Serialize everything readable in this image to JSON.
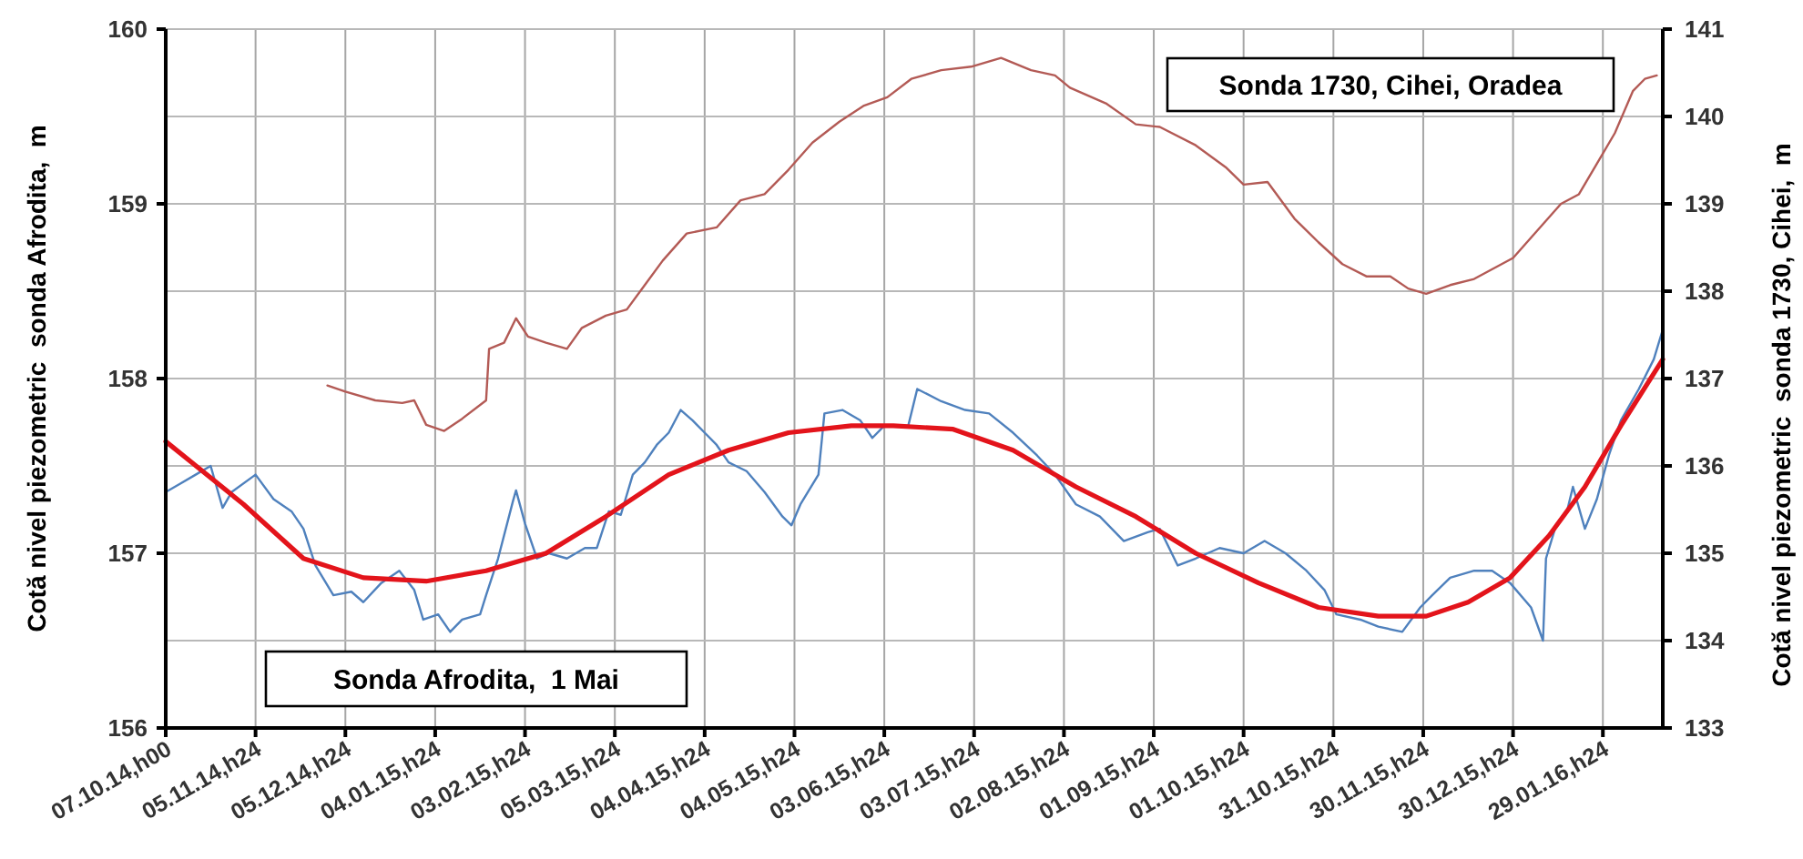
{
  "chart_data": {
    "type": "line",
    "ylabel": "Cotă nivel piezometric  sonda Afrodita,  m",
    "y2label": "Cotă nivel piezometric  sonda 1730, Cihei,  m",
    "xlim": [
      "2014-10-07",
      "2016-02-19"
    ],
    "xticks": [
      {
        "value": "2014-10-07",
        "label": "07.10.14,h00"
      },
      {
        "value": "2014-11-06",
        "label": "05.11.14,h24"
      },
      {
        "value": "2014-12-06",
        "label": "05.12.14,h24"
      },
      {
        "value": "2015-01-05",
        "label": "04.01.15,h24"
      },
      {
        "value": "2015-02-04",
        "label": "03.02.15,h24"
      },
      {
        "value": "2015-03-06",
        "label": "05.03.15,h24"
      },
      {
        "value": "2015-04-05",
        "label": "04.04.15,h24"
      },
      {
        "value": "2015-05-05",
        "label": "04.05.15,h24"
      },
      {
        "value": "2015-06-04",
        "label": "03.06.15,h24"
      },
      {
        "value": "2015-07-04",
        "label": "03.07.15,h24"
      },
      {
        "value": "2015-08-03",
        "label": "02.08.15,h24"
      },
      {
        "value": "2015-09-02",
        "label": "01.09.15,h24"
      },
      {
        "value": "2015-10-02",
        "label": "01.10.15,h24"
      },
      {
        "value": "2015-11-01",
        "label": "31.10.15,h24"
      },
      {
        "value": "2015-12-01",
        "label": "30.11.15,h24"
      },
      {
        "value": "2015-12-31",
        "label": "30.12.15,h24"
      },
      {
        "value": "2016-01-30",
        "label": "29.01.16,h24"
      }
    ],
    "ylim": [
      156,
      160
    ],
    "yticks": [
      156,
      157,
      158,
      159,
      160
    ],
    "y2lim": [
      133,
      141
    ],
    "y2ticks": [
      133,
      134,
      135,
      136,
      137,
      138,
      139,
      140,
      141
    ],
    "grid": true,
    "annotations": [
      "Sonda 1730, Cihei, Oradea",
      "Sonda Afrodita,  1 Mai"
    ],
    "series": [
      {
        "color": "#4f81bd",
        "x": [
          "2014-10-07",
          "2014-10-12",
          "2014-10-17",
          "2014-10-22",
          "2014-10-26",
          "2014-10-29",
          "2014-11-06",
          "2014-11-12",
          "2014-11-18",
          "2014-11-22",
          "2014-11-26",
          "2014-12-02",
          "2014-12-08",
          "2014-12-12",
          "2014-12-18",
          "2014-12-24",
          "2014-12-29",
          "2015-01-01",
          "2015-01-06",
          "2015-01-10",
          "2015-01-14",
          "2015-01-20",
          "2015-01-22",
          "2015-01-26",
          "2015-01-31",
          "2015-02-01",
          "2015-02-04",
          "2015-02-08",
          "2015-02-12",
          "2015-02-18",
          "2015-02-24",
          "2015-02-28",
          "2015-03-04",
          "2015-03-08",
          "2015-03-12",
          "2015-03-16",
          "2015-03-20",
          "2015-03-24",
          "2015-03-28",
          "2015-04-01",
          "2015-04-05",
          "2015-04-09",
          "2015-04-13",
          "2015-04-19",
          "2015-04-25",
          "2015-05-01",
          "2015-05-04",
          "2015-05-07",
          "2015-05-13",
          "2015-05-15",
          "2015-05-21",
          "2015-05-27",
          "2015-05-31",
          "2015-06-04",
          "2015-06-07",
          "2015-06-12",
          "2015-06-15",
          "2015-06-23",
          "2015-07-01",
          "2015-07-09",
          "2015-07-17",
          "2015-07-25",
          "2015-07-31",
          "2015-08-07",
          "2015-08-15",
          "2015-08-23",
          "2015-08-31",
          "2015-09-04",
          "2015-09-10",
          "2015-09-16",
          "2015-09-24",
          "2015-10-02",
          "2015-10-09",
          "2015-10-16",
          "2015-10-23",
          "2015-10-29",
          "2015-11-02",
          "2015-11-10",
          "2015-11-16",
          "2015-11-24",
          "2015-11-30",
          "2015-12-04",
          "2015-12-10",
          "2015-12-18",
          "2015-12-24",
          "2015-12-30",
          "2016-01-06",
          "2016-01-10",
          "2016-01-11",
          "2016-01-14",
          "2016-01-18",
          "2016-01-20",
          "2016-01-24",
          "2016-01-28",
          "2016-02-01",
          "2016-02-05",
          "2016-02-11",
          "2016-02-16",
          "2016-02-19"
        ],
        "values": [
          157.35,
          157.4,
          157.45,
          157.5,
          157.26,
          157.35,
          157.45,
          157.31,
          157.24,
          157.14,
          156.93,
          156.76,
          156.78,
          156.72,
          156.83,
          156.9,
          156.79,
          156.62,
          156.65,
          156.55,
          156.62,
          156.65,
          156.76,
          156.97,
          157.3,
          157.36,
          157.17,
          156.97,
          157.0,
          156.97,
          157.03,
          157.03,
          157.24,
          157.22,
          157.45,
          157.52,
          157.62,
          157.69,
          157.82,
          157.76,
          157.69,
          157.62,
          157.52,
          157.47,
          157.35,
          157.21,
          157.16,
          157.28,
          157.45,
          157.8,
          157.82,
          157.76,
          157.66,
          157.73,
          157.73,
          157.73,
          157.94,
          157.87,
          157.82,
          157.8,
          157.69,
          157.56,
          157.45,
          157.28,
          157.21,
          157.07,
          157.12,
          157.14,
          156.93,
          156.97,
          157.03,
          157.0,
          157.07,
          157.0,
          156.9,
          156.79,
          156.65,
          156.62,
          156.58,
          156.55,
          156.69,
          156.76,
          156.86,
          156.9,
          156.9,
          156.83,
          156.69,
          156.5,
          156.97,
          157.14,
          157.24,
          157.38,
          157.14,
          157.31,
          157.56,
          157.76,
          157.94,
          158.11,
          158.28
        ]
      },
      {
        "color": "#e3141b",
        "x": [
          "2014-10-07",
          "2014-11-02",
          "2014-11-22",
          "2014-12-12",
          "2015-01-02",
          "2015-01-22",
          "2015-02-11",
          "2015-03-03",
          "2015-03-24",
          "2015-04-13",
          "2015-05-03",
          "2015-05-24",
          "2015-06-07",
          "2015-06-27",
          "2015-07-17",
          "2015-08-07",
          "2015-08-27",
          "2015-09-16",
          "2015-10-07",
          "2015-10-27",
          "2015-11-16",
          "2015-12-02",
          "2015-12-16",
          "2015-12-30",
          "2016-01-12",
          "2016-01-24",
          "2016-02-05",
          "2016-02-19"
        ],
        "values": [
          157.64,
          157.28,
          156.97,
          156.86,
          156.84,
          156.9,
          157.0,
          157.21,
          157.45,
          157.59,
          157.69,
          157.73,
          157.73,
          157.71,
          157.59,
          157.38,
          157.21,
          157.0,
          156.83,
          156.69,
          156.64,
          156.64,
          156.72,
          156.86,
          157.1,
          157.38,
          157.73,
          158.11
        ]
      },
      {
        "color": "#b35a55",
        "axis": "y2",
        "x": [
          "2014-11-30",
          "2014-12-06",
          "2014-12-16",
          "2014-12-25",
          "2014-12-29",
          "2015-01-02",
          "2015-01-08",
          "2015-01-14",
          "2015-01-22",
          "2015-01-23",
          "2015-01-28",
          "2015-02-01",
          "2015-02-05",
          "2015-02-11",
          "2015-02-18",
          "2015-02-23",
          "2015-03-03",
          "2015-03-10",
          "2015-03-16",
          "2015-03-22",
          "2015-03-30",
          "2015-04-09",
          "2015-04-17",
          "2015-04-25",
          "2015-05-03",
          "2015-05-11",
          "2015-05-20",
          "2015-05-28",
          "2015-06-05",
          "2015-06-13",
          "2015-06-23",
          "2015-07-03",
          "2015-07-13",
          "2015-07-23",
          "2015-07-31",
          "2015-08-05",
          "2015-08-17",
          "2015-08-27",
          "2015-09-04",
          "2015-09-16",
          "2015-09-26",
          "2015-10-02",
          "2015-10-10",
          "2015-10-19",
          "2015-10-27",
          "2015-11-04",
          "2015-11-12",
          "2015-11-20",
          "2015-11-26",
          "2015-12-02",
          "2015-12-10",
          "2015-12-18",
          "2015-12-31",
          "2016-01-08",
          "2016-01-16",
          "2016-01-22",
          "2016-01-28",
          "2016-02-03",
          "2016-02-09",
          "2016-02-13",
          "2016-02-17"
        ],
        "values": [
          136.92,
          136.85,
          136.75,
          136.72,
          136.75,
          136.47,
          136.4,
          136.54,
          136.75,
          137.34,
          137.41,
          137.69,
          137.48,
          137.41,
          137.34,
          137.58,
          137.72,
          137.79,
          138.07,
          138.35,
          138.66,
          138.73,
          139.04,
          139.11,
          139.39,
          139.7,
          139.94,
          140.12,
          140.22,
          140.43,
          140.53,
          140.57,
          140.67,
          140.53,
          140.47,
          140.33,
          140.15,
          139.91,
          139.88,
          139.67,
          139.42,
          139.22,
          139.25,
          138.83,
          138.56,
          138.31,
          138.17,
          138.17,
          138.03,
          137.97,
          138.07,
          138.14,
          138.38,
          138.69,
          139.0,
          139.11,
          139.46,
          139.81,
          140.29,
          140.43,
          140.47
        ]
      }
    ]
  }
}
